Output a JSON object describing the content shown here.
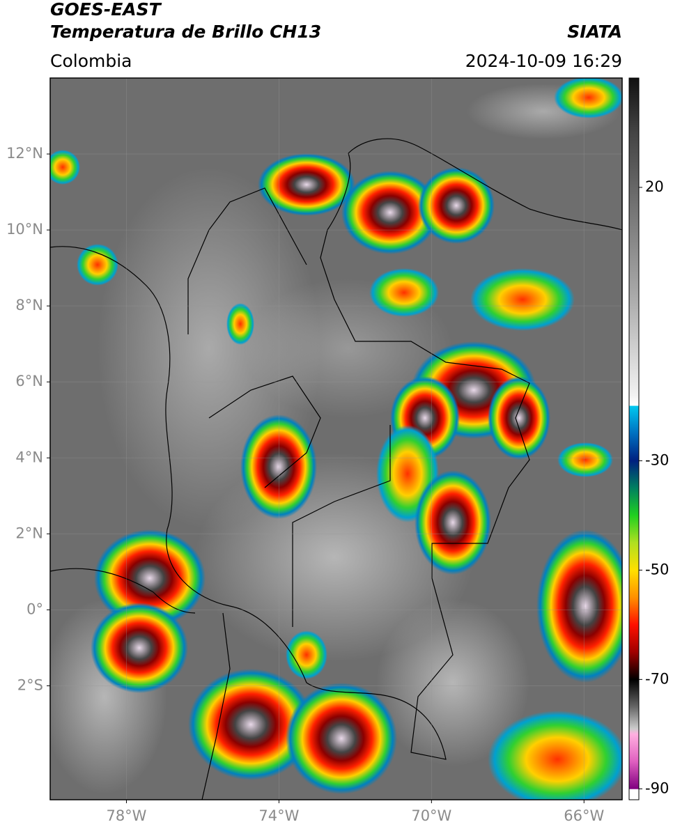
{
  "header": {
    "satellite": "GOES-EAST",
    "product": "Temperatura de Brillo CH13",
    "source": "SIATA",
    "region": "Colombia",
    "datetime": "2024-10-09 16:29"
  },
  "map": {
    "xlim": [
      -80,
      -65
    ],
    "ylim": [
      -5,
      14
    ],
    "grid": true,
    "xticks": [
      {
        "value": -78,
        "label": "78°W"
      },
      {
        "value": -74,
        "label": "74°W"
      },
      {
        "value": -70,
        "label": "70°W"
      },
      {
        "value": -66,
        "label": "66°W"
      }
    ],
    "yticks": [
      {
        "value": 12,
        "label": "12°N"
      },
      {
        "value": 10,
        "label": "10°N"
      },
      {
        "value": 8,
        "label": "8°N"
      },
      {
        "value": 6,
        "label": "6°N"
      },
      {
        "value": 4,
        "label": "4°N"
      },
      {
        "value": 2,
        "label": "2°N"
      },
      {
        "value": 0,
        "label": "0°"
      },
      {
        "value": -2,
        "label": "2°S"
      }
    ]
  },
  "colorbar": {
    "lim": [
      -92,
      40
    ],
    "ticks": [
      20,
      -30,
      -50,
      -70,
      -90
    ],
    "stops": [
      [
        40,
        "#111111"
      ],
      [
        30,
        "#444444"
      ],
      [
        15,
        "#787878"
      ],
      [
        0,
        "#aaaaaa"
      ],
      [
        -18,
        "#f2f2f2"
      ],
      [
        -19.9,
        "#ffffff"
      ],
      [
        -20,
        "#00c8f0"
      ],
      [
        -25,
        "#0070c0"
      ],
      [
        -30,
        "#002080"
      ],
      [
        -35,
        "#008060"
      ],
      [
        -40,
        "#20d020"
      ],
      [
        -45,
        "#b0e020"
      ],
      [
        -50,
        "#ffe000"
      ],
      [
        -55,
        "#ff9000"
      ],
      [
        -60,
        "#ff1000"
      ],
      [
        -65,
        "#a00000"
      ],
      [
        -70,
        "#000000"
      ],
      [
        -75,
        "#666666"
      ],
      [
        -79,
        "#cccccc"
      ],
      [
        -80,
        "#ffb0e0"
      ],
      [
        -85,
        "#e060c0"
      ],
      [
        -90,
        "#800080"
      ],
      [
        -90.1,
        "#ffffff"
      ],
      [
        -92,
        "#ffffff"
      ]
    ]
  }
}
